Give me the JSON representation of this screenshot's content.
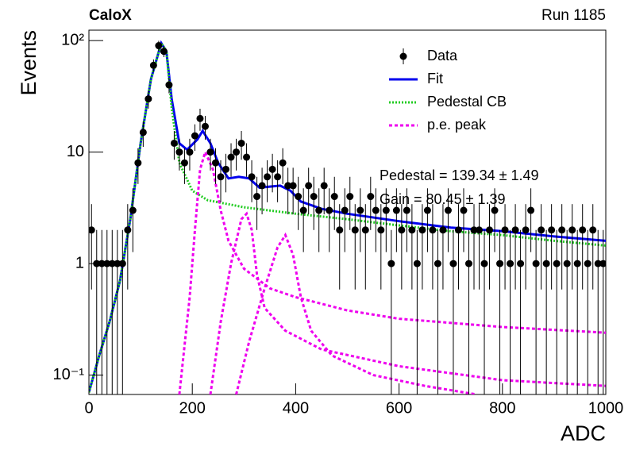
{
  "chart_data": {
    "type": "scatter",
    "title": "CaloX",
    "subtitle": "Run 1185",
    "x_label": "ADC",
    "y_label": "Events",
    "log_y": true,
    "legend": "upper right",
    "xlim": [
      0,
      1000
    ],
    "ylim": [
      0.067,
      124
    ],
    "xticks": [
      0,
      200,
      400,
      600,
      800,
      1000
    ],
    "yticks": [
      {
        "value": 0.1,
        "label": "10⁻¹"
      },
      1,
      10,
      {
        "value": 100,
        "label": "10²"
      }
    ],
    "annotations": [
      "Pedestal = 139.34 ± 1.49",
      "Gain = 80.45 ± 1.39"
    ],
    "series": [
      {
        "name": "Data",
        "color": "#000000",
        "style": "points",
        "x": [
          5,
          15,
          25,
          35,
          45,
          55,
          65,
          75,
          85,
          95,
          105,
          115,
          125,
          135,
          145,
          155,
          165,
          175,
          185,
          195,
          205,
          215,
          225,
          235,
          245,
          255,
          265,
          275,
          285,
          295,
          305,
          315,
          325,
          335,
          345,
          355,
          365,
          375,
          385,
          395,
          405,
          415,
          425,
          435,
          445,
          455,
          465,
          475,
          485,
          495,
          505,
          515,
          525,
          535,
          545,
          555,
          565,
          575,
          585,
          595,
          605,
          615,
          625,
          635,
          645,
          655,
          665,
          675,
          685,
          695,
          705,
          715,
          725,
          735,
          745,
          755,
          765,
          775,
          785,
          795,
          805,
          815,
          825,
          835,
          845,
          855,
          865,
          875,
          885,
          895,
          905,
          915,
          925,
          935,
          945,
          955,
          965,
          975,
          985,
          995
        ],
        "values": [
          2,
          1,
          1,
          1,
          1,
          1,
          1,
          2,
          3,
          8,
          15,
          30,
          60,
          90,
          80,
          40,
          12,
          10,
          8,
          10,
          14,
          20,
          17,
          10,
          8,
          6,
          7,
          9,
          10,
          12,
          9,
          6,
          4,
          5,
          6,
          7,
          6,
          8,
          5,
          5,
          4,
          3,
          5,
          4,
          3,
          5,
          3,
          4,
          2,
          3,
          4,
          2,
          3,
          2,
          4,
          3,
          2,
          3,
          1,
          3,
          2,
          3,
          2,
          1,
          2,
          3,
          2,
          1,
          2,
          3,
          1,
          2,
          3,
          1,
          2,
          2,
          1,
          2,
          3,
          1,
          2,
          1,
          2,
          1,
          2,
          3,
          1,
          2,
          1,
          2,
          1,
          2,
          1,
          2,
          1,
          2,
          1,
          2,
          1,
          1
        ]
      },
      {
        "name": "Fit",
        "color": "#0000ee",
        "style": "solid",
        "x": [
          0,
          20,
          40,
          60,
          80,
          100,
          120,
          140,
          150,
          160,
          175,
          190,
          210,
          220,
          235,
          250,
          270,
          290,
          310,
          330,
          350,
          370,
          390,
          410,
          450,
          500,
          600,
          700,
          800,
          900,
          1000
        ],
        "values": [
          0.07,
          0.15,
          0.3,
          0.7,
          2.5,
          12,
          45,
          95,
          80,
          30,
          12,
          10.5,
          13,
          15.5,
          12,
          8,
          5.8,
          6,
          5.8,
          4.8,
          4.9,
          5.0,
          4.5,
          3.6,
          3.1,
          2.8,
          2.4,
          2.1,
          1.95,
          1.75,
          1.6
        ]
      },
      {
        "name": "Pedestal CB",
        "color": "#22cc22",
        "style": "dotted",
        "x": [
          0,
          20,
          40,
          60,
          80,
          100,
          120,
          140,
          150,
          160,
          175,
          200,
          230,
          300,
          400,
          500,
          600,
          700,
          800,
          900,
          1000
        ],
        "values": [
          0.07,
          0.15,
          0.3,
          0.7,
          2.5,
          12,
          45,
          95,
          80,
          25,
          8,
          4.5,
          3.7,
          3.2,
          2.8,
          2.5,
          2.2,
          1.95,
          1.8,
          1.6,
          1.45
        ]
      },
      {
        "name": "p.e. peak",
        "color": "#ee00ee",
        "style": "dashed",
        "pieces": [
          {
            "x": [
              175,
              195,
              205,
              215,
              225,
              240,
              255,
              270,
              300,
              350,
              400,
              500,
              600,
              800,
              1000
            ],
            "values": [
              0.067,
              0.5,
              2,
              7,
              10,
              7,
              3,
              1.6,
              0.9,
              0.6,
              0.5,
              0.38,
              0.32,
              0.27,
              0.24
            ]
          },
          {
            "x": [
              235,
              255,
              275,
              295,
              305,
              315,
              325,
              340,
              380,
              450,
              600,
              800,
              1000
            ],
            "values": [
              0.067,
              0.3,
              1,
              2.5,
              2.8,
              2,
              0.8,
              0.4,
              0.25,
              0.17,
              0.12,
              0.09,
              0.08
            ]
          },
          {
            "x": [
              285,
              310,
              340,
              365,
              380,
              395,
              410,
              430,
              470,
              550,
              650,
              750
            ],
            "values": [
              0.067,
              0.2,
              0.6,
              1.4,
              1.8,
              1.2,
              0.5,
              0.25,
              0.15,
              0.1,
              0.08,
              0.067
            ]
          }
        ]
      }
    ]
  }
}
